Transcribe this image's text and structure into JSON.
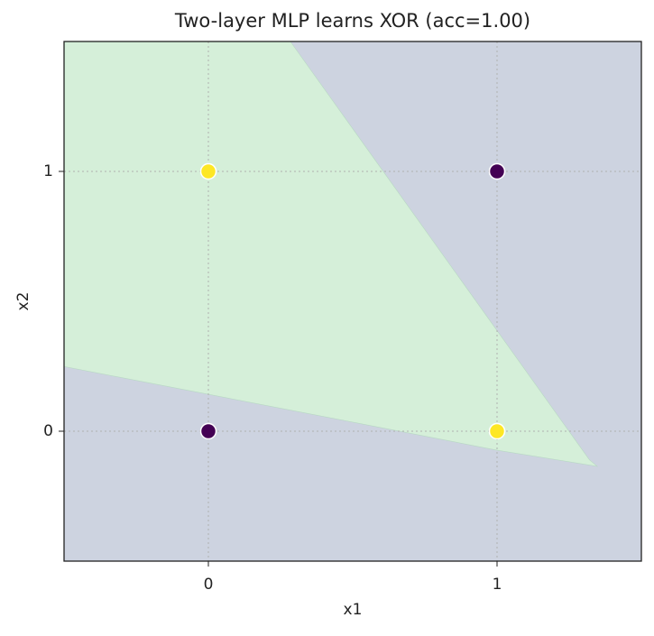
{
  "chart_data": {
    "type": "scatter",
    "title": "Two-layer MLP learns XOR (acc=1.00)",
    "x_label": "x1",
    "y_label": "x2",
    "x": [
      0,
      0,
      1,
      1
    ],
    "values": [
      0,
      1,
      0,
      1
    ],
    "colors": [
      "#440154",
      "#fde725",
      "#fde725",
      "#440154"
    ],
    "background_color": "#cdd3e0",
    "region": {
      "color": "#d5efd9",
      "x": [
        -0.5,
        0.284,
        1.32,
        1.347,
        1.0,
        0.5,
        0,
        -0.5
      ],
      "y": [
        1.5,
        1.5,
        -0.11,
        -0.135,
        -0.073,
        0.035,
        0.142,
        0.249
      ]
    },
    "xlim": [
      -0.5,
      1.5
    ],
    "ylim": [
      -0.5,
      1.5
    ],
    "xticks": [
      0,
      1
    ],
    "yticks": [
      0,
      1
    ],
    "grid": true
  }
}
